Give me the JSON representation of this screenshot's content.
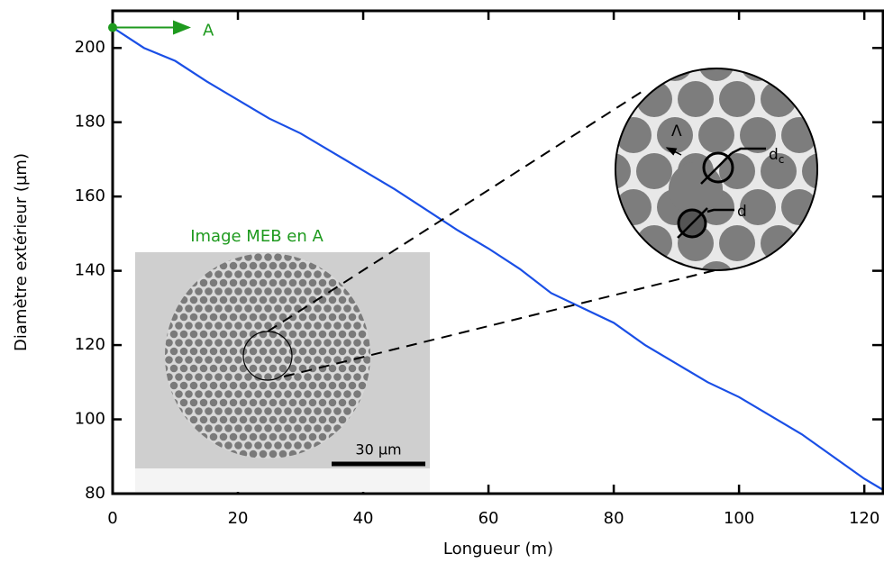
{
  "chart_data": {
    "type": "line",
    "x_label": "Longueur (m)",
    "y_label": "Diamètre extérieur (µm)",
    "xlim": [
      0,
      123
    ],
    "xticks": [
      0,
      20,
      40,
      60,
      80,
      100,
      120
    ],
    "ylim": [
      80,
      210
    ],
    "yticks": [
      80,
      100,
      120,
      140,
      160,
      180,
      200
    ],
    "series": [
      {
        "color": "#1a4fe6",
        "x": [
          0,
          5,
          10,
          15,
          20,
          25,
          30,
          35,
          40,
          45,
          50,
          55,
          60,
          65,
          70,
          75,
          80,
          85,
          90,
          95,
          100,
          105,
          110,
          115,
          120,
          123
        ],
        "values": [
          205.5,
          200,
          196.5,
          191,
          186,
          181,
          177,
          172,
          167,
          162,
          156.5,
          151,
          146,
          140.5,
          134,
          130,
          126,
          120,
          115,
          110,
          106,
          101,
          96,
          90,
          84,
          81
        ]
      }
    ],
    "marker": {
      "label": "A",
      "x": 0,
      "y": 205.5,
      "color": "#1e9a1e"
    },
    "inset": {
      "title": "Image MEB en A",
      "scale_bar": "30 µm"
    },
    "zoom": {
      "pitch": "Λ",
      "core": "d",
      "core_sub": "c",
      "hole": "d"
    }
  }
}
